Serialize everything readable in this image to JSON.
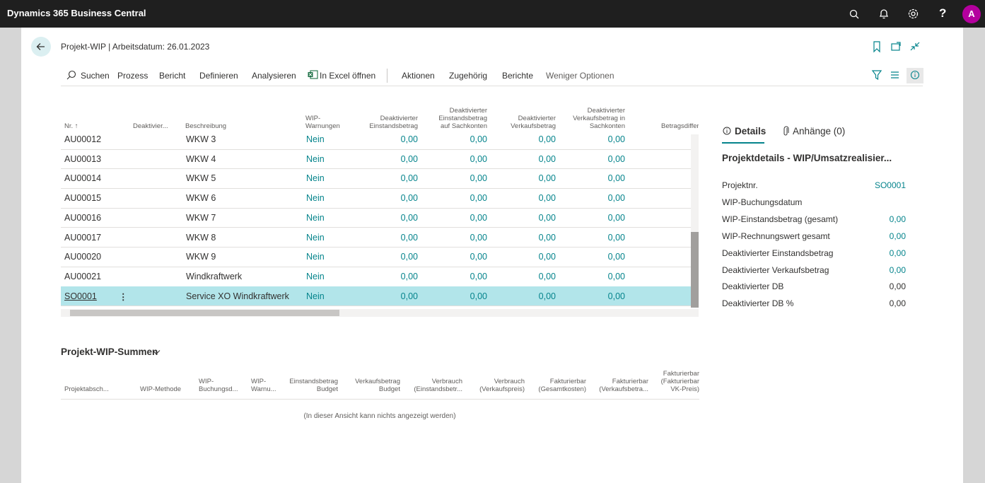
{
  "app_bar": {
    "title": "Dynamics 365 Business Central",
    "avatar": "A"
  },
  "page": {
    "title": "Projekt-WIP | Arbeitsdatum: 26.01.2023"
  },
  "actions": [
    "Suchen",
    "Prozess",
    "Bericht",
    "Definieren",
    "Analysieren",
    "In Excel öffnen",
    "Aktionen",
    "Zugehörig",
    "Berichte",
    "Weniger Optionen"
  ],
  "table": {
    "columns": [
      "Nr. ↑",
      "Deaktivier...",
      "Beschreibung",
      "WIP-\nWarnungen",
      "Deaktivierter\nEinstandsbetrag",
      "Deaktivierter\nEinstandsbetrag\nauf Sachkonten",
      "Deaktivierter\nVerkaufsbetrag",
      "Deaktivierter\nVerkaufsbetrag in\nSachkonten",
      "Betragsdifferenz"
    ],
    "rows": [
      {
        "nr": "AU00012",
        "description": "WKW 3",
        "wip_warnings": "Nein",
        "amounts": [
          "0,00",
          "0,00",
          "0,00",
          "0,00"
        ]
      },
      {
        "nr": "AU00013",
        "description": "WKW 4",
        "wip_warnings": "Nein",
        "amounts": [
          "0,00",
          "0,00",
          "0,00",
          "0,00"
        ]
      },
      {
        "nr": "AU00014",
        "description": "WKW 5",
        "wip_warnings": "Nein",
        "amounts": [
          "0,00",
          "0,00",
          "0,00",
          "0,00"
        ]
      },
      {
        "nr": "AU00015",
        "description": "WKW 6",
        "wip_warnings": "Nein",
        "amounts": [
          "0,00",
          "0,00",
          "0,00",
          "0,00"
        ]
      },
      {
        "nr": "AU00016",
        "description": "WKW 7",
        "wip_warnings": "Nein",
        "amounts": [
          "0,00",
          "0,00",
          "0,00",
          "0,00"
        ]
      },
      {
        "nr": "AU00017",
        "description": "WKW 8",
        "wip_warnings": "Nein",
        "amounts": [
          "0,00",
          "0,00",
          "0,00",
          "0,00"
        ]
      },
      {
        "nr": "AU00020",
        "description": "WKW 9",
        "wip_warnings": "Nein",
        "amounts": [
          "0,00",
          "0,00",
          "0,00",
          "0,00"
        ]
      },
      {
        "nr": "AU00021",
        "description": "Windkraftwerk",
        "wip_warnings": "Nein",
        "amounts": [
          "0,00",
          "0,00",
          "0,00",
          "0,00"
        ]
      },
      {
        "nr": "SO0001",
        "description": "Service XO Windkraftwerk",
        "wip_warnings": "Nein",
        "amounts": [
          "0,00",
          "0,00",
          "0,00",
          "0,00"
        ]
      }
    ]
  },
  "factbox": {
    "tabs": [
      "Details",
      "Anhänge (0)"
    ],
    "heading": "Projektdetails - WIP/Umsatzrealisier...",
    "fields": [
      {
        "label": "Projektnr.",
        "value": "SO0001"
      },
      {
        "label": "WIP-Buchungsdatum"
      },
      {
        "label": "WIP-Einstandsbetrag (gesamt)",
        "value": "0,00"
      },
      {
        "label": "WIP-Rechnungswert gesamt",
        "value": "0,00"
      },
      {
        "label": "Deaktivierter Einstandsbetrag",
        "value": "0,00"
      },
      {
        "label": "Deaktivierter Verkaufsbetrag",
        "value": "0,00"
      },
      {
        "label": "Deaktivierter DB",
        "value": "0,00"
      },
      {
        "label": "Deaktivierter DB %",
        "value": "0,00"
      }
    ]
  },
  "summary": {
    "title": "Projekt-WIP-Summen",
    "columns": [
      "Projektabsch...",
      "WIP-Methode",
      "WIP-\nBuchungsd...",
      "WIP-\nWarnu...",
      "Einstandsbetrag\nBudget",
      "Verkaufsbetrag\nBudget",
      "Verbrauch\n(Einstandsbetr...",
      "Verbrauch\n(Verkaufspreis)",
      "Fakturierbar\n(Gesamtkosten)",
      "Fakturierbar\n(Verkaufsbetra...",
      "Fakturierbar\n(Fakturierbar\nVK-Preis)"
    ],
    "empty_message": "(In dieser Ansicht kann nichts angezeigt werden)"
  }
}
